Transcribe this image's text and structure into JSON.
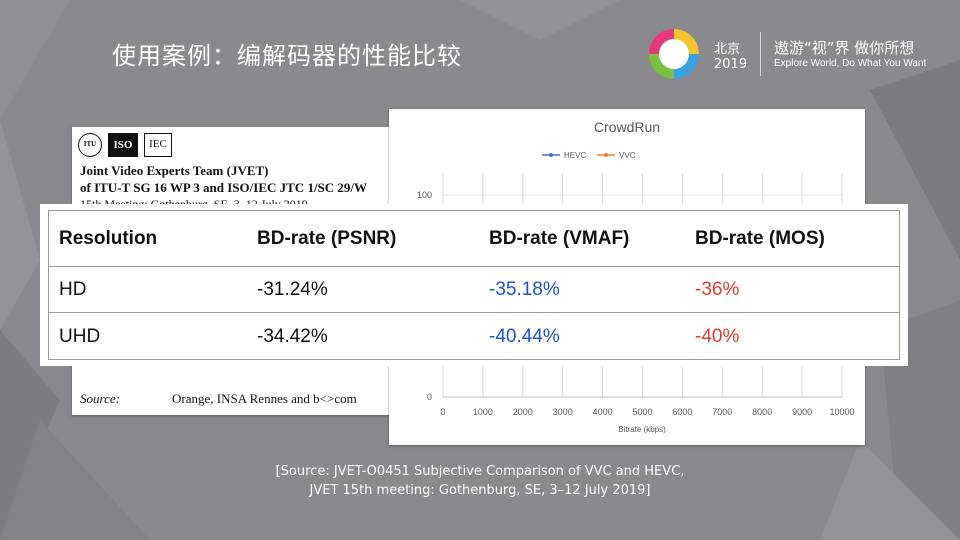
{
  "slide": {
    "title": "使用案例：编解码器的性能比较",
    "logo": {
      "city": "北京",
      "year": "2019",
      "slogan": "遨游“视”界  做你所想",
      "slogan_en": "Explore World, Do What You Want"
    }
  },
  "document": {
    "logos": [
      "ITU",
      "ISO",
      "IEC"
    ],
    "org": "Joint Video Experts Team (JVET)",
    "sub": "of ITU-T SG 16 WP 3 and ISO/IEC JTC 1/SC 29/W",
    "meeting": "15th Meeting: Gothenburg, SE, 3–12 July 2019",
    "source_label": "Source:",
    "source_value": "Orange, INSA Rennes and b<>com"
  },
  "chart_data": {
    "type": "line",
    "title": "CrowdRun",
    "xlabel": "Bitrate (kbps)",
    "ylabel": "",
    "x_ticks": [
      0,
      1000,
      2000,
      3000,
      4000,
      5000,
      6000,
      7000,
      8000,
      9000,
      10000
    ],
    "y_ticks_visible": [
      100,
      0
    ],
    "xlim": [
      0,
      10000
    ],
    "ylim": [
      0,
      100
    ],
    "legend_position": "top",
    "grid": true,
    "series": [
      {
        "name": "HEVC",
        "color": "#4472c4"
      },
      {
        "name": "VVC",
        "color": "#ed7d31"
      }
    ]
  },
  "table": {
    "headers": [
      "Resolution",
      "BD-rate (PSNR)",
      "BD-rate (VMAF)",
      "BD-rate (MOS)"
    ],
    "rows": [
      [
        "HD",
        "-31.24%",
        "-35.18%",
        "-36%"
      ],
      [
        "UHD",
        "-34.42%",
        "-40.44%",
        "-40%"
      ]
    ],
    "colors": {
      "vmaf": "#1f4fd0",
      "mos": "#e03a2e"
    }
  },
  "footer": {
    "line1": "[Source:  JVET-O0451  Subjective  Comparison  of  VVC  and  HEVC,",
    "line2": "JVET 15th meeting:  Gothenburg,  SE, 3–12 July 2019]"
  }
}
